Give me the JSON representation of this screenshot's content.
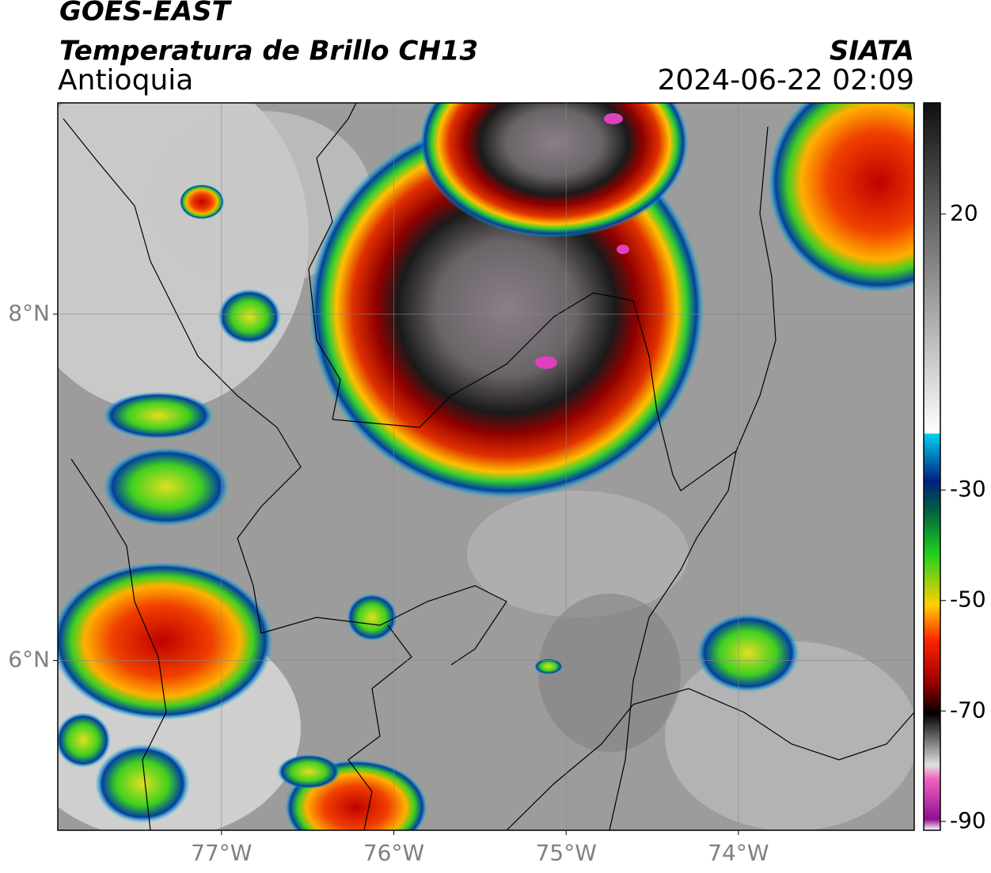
{
  "header": {
    "title": "GOES-EAST",
    "subtitle": "Temperatura de Brillo CH13",
    "region": "Antioquia",
    "source": "SIATA",
    "datetime": "2024-06-22 02:09"
  },
  "map": {
    "xlim": [
      -77.95,
      -72.98
    ],
    "ylim": [
      5.02,
      9.22
    ],
    "xticks": [
      {
        "value": -77,
        "label": "77°W"
      },
      {
        "value": -76,
        "label": "76°W"
      },
      {
        "value": -75,
        "label": "75°W"
      },
      {
        "value": -74,
        "label": "74°W"
      }
    ],
    "yticks": [
      {
        "value": 6,
        "label": "6°N"
      },
      {
        "value": 8,
        "label": "8°N"
      }
    ],
    "grid": true
  },
  "colorbar": {
    "lim": [
      -91.6,
      40.1
    ],
    "ticks": [
      20,
      -30,
      -50,
      -70,
      -90
    ]
  }
}
